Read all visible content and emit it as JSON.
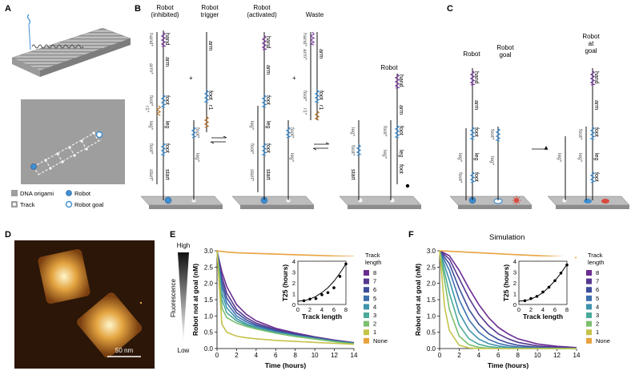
{
  "panels": {
    "A": "A",
    "B": "B",
    "C": "C",
    "D": "D",
    "E": "E",
    "F": "F"
  },
  "panelB": {
    "robot_inhibited": [
      "Robot",
      "(inhibited)"
    ],
    "robot_trigger": [
      "Robot",
      "trigger"
    ],
    "robot_activated": [
      "Robot",
      "(activated)"
    ],
    "waste": "Waste",
    "robot": "Robot"
  },
  "panelC": {
    "robot": "Robot",
    "robot_goal": [
      "Robot",
      "goal"
    ],
    "robot_at_goal": [
      "Robot",
      "at",
      "goal"
    ]
  },
  "strand_labels": {
    "hand": "hand",
    "arm": "arm",
    "foot": "foot",
    "leg": "leg",
    "start": "start",
    "r1": "r1",
    "hand_star": "hand*",
    "arm_star": "arm*",
    "foot_star": "foot*",
    "leg_star": "leg*",
    "start_star": "start*",
    "r1_star": "r1*"
  },
  "panelA_legend": [
    {
      "label": "DNA origami",
      "icon": "gray-square"
    },
    {
      "label": "Robot",
      "icon": "blue-star-circle"
    },
    {
      "label": "Track",
      "icon": "white-dot"
    },
    {
      "label": "Robot goal",
      "icon": "blue-ring"
    }
  ],
  "panelD": {
    "scalebar": "50 nm"
  },
  "fluorescence": {
    "high": "High",
    "low": "Low",
    "label": "Fluorescence"
  },
  "colors": {
    "blue_domain": "#3f8fd2",
    "purple_domain": "#7b3f9e",
    "brown_domain": "#b8732e",
    "surface": "#b9b9b9",
    "orange_none": "#e8a23d",
    "red_goal": "#d94a3c"
  },
  "chart_data": [
    {
      "type": "line",
      "panel": "E",
      "title": "",
      "xlabel": "Time (hours)",
      "ylabel": "Robot not at goal (nM)",
      "xlim": [
        0,
        14
      ],
      "ylim": [
        0,
        3
      ],
      "xticks": [
        "0",
        "2",
        "4",
        "6",
        "8",
        "10",
        "12",
        "14"
      ],
      "yticks": [
        "0.0",
        "0.5",
        "1.0",
        "1.5",
        "2.0",
        "2.5",
        "3.0"
      ],
      "legend_title": [
        "Track",
        "length"
      ],
      "series": [
        {
          "name": "8",
          "color": "#6a2c91",
          "values_at_x": {
            "x": [
              0,
              0.5,
              1,
              2,
              3,
              4,
              6,
              8,
              10,
              12,
              14
            ],
            "y": [
              3.0,
              2.35,
              1.9,
              1.35,
              1.05,
              0.85,
              0.62,
              0.48,
              0.36,
              0.26,
              0.18
            ]
          }
        },
        {
          "name": "7",
          "color": "#55378f",
          "values_at_x": {
            "x": [
              0,
              0.5,
              1,
              2,
              3,
              4,
              6,
              8,
              10,
              12,
              14
            ],
            "y": [
              3.0,
              2.2,
              1.7,
              1.2,
              0.95,
              0.78,
              0.58,
              0.45,
              0.34,
              0.25,
              0.17
            ]
          }
        },
        {
          "name": "6",
          "color": "#3d4c9a",
          "values_at_x": {
            "x": [
              0,
              0.5,
              1,
              2,
              3,
              4,
              6,
              8,
              10,
              12,
              14
            ],
            "y": [
              3.0,
              2.05,
              1.55,
              1.1,
              0.88,
              0.73,
              0.55,
              0.43,
              0.33,
              0.24,
              0.16
            ]
          }
        },
        {
          "name": "5",
          "color": "#3b6fae",
          "values_at_x": {
            "x": [
              0,
              0.5,
              1,
              2,
              3,
              4,
              6,
              8,
              10,
              12,
              14
            ],
            "y": [
              3.0,
              1.9,
              1.4,
              1.0,
              0.82,
              0.69,
              0.53,
              0.41,
              0.32,
              0.23,
              0.16
            ]
          }
        },
        {
          "name": "4",
          "color": "#3e93ac",
          "values_at_x": {
            "x": [
              0,
              0.5,
              1,
              2,
              3,
              4,
              6,
              8,
              10,
              12,
              14
            ],
            "y": [
              3.0,
              1.7,
              1.25,
              0.92,
              0.76,
              0.65,
              0.5,
              0.4,
              0.31,
              0.22,
              0.15
            ]
          }
        },
        {
          "name": "3",
          "color": "#4aa99a",
          "values_at_x": {
            "x": [
              0,
              0.5,
              1,
              2,
              3,
              4,
              6,
              8,
              10,
              12,
              14
            ],
            "y": [
              3.0,
              1.5,
              1.1,
              0.85,
              0.72,
              0.62,
              0.48,
              0.38,
              0.3,
              0.22,
              0.15
            ]
          }
        },
        {
          "name": "2",
          "color": "#7bbf6e",
          "values_at_x": {
            "x": [
              0,
              0.5,
              1,
              2,
              3,
              4,
              6,
              8,
              10,
              12,
              14
            ],
            "y": [
              3.0,
              1.25,
              0.95,
              0.78,
              0.68,
              0.6,
              0.47,
              0.37,
              0.29,
              0.21,
              0.14
            ]
          }
        },
        {
          "name": "1",
          "color": "#c4c34a",
          "values_at_x": {
            "x": [
              0,
              0.5,
              1,
              2,
              3,
              4,
              6,
              8,
              10,
              12,
              14
            ],
            "y": [
              3.0,
              0.75,
              0.5,
              0.38,
              0.33,
              0.3,
              0.25,
              0.22,
              0.19,
              0.16,
              0.13
            ]
          }
        },
        {
          "name": "None",
          "color": "#e8a23d",
          "values_at_x": {
            "x": [
              0,
              0.5,
              1,
              2,
              4,
              6,
              8,
              10,
              12,
              14
            ],
            "y": [
              3.0,
              2.98,
              2.96,
              2.94,
              2.92,
              2.9,
              2.88,
              2.86,
              2.84,
              2.82
            ]
          }
        }
      ],
      "inset": {
        "xlabel": "Track length",
        "ylabel": "T25 (hours)",
        "xlim": [
          0,
          8
        ],
        "ylim": [
          0,
          4
        ],
        "xticks": [
          "0",
          "2",
          "4",
          "6",
          "8"
        ],
        "yticks": [
          "0",
          "1",
          "2",
          "3",
          "4"
        ],
        "points": {
          "x": [
            1,
            2,
            3,
            4,
            5,
            6,
            7,
            8
          ],
          "y": [
            0.35,
            0.5,
            0.55,
            0.9,
            1.1,
            1.55,
            2.6,
            3.75
          ]
        },
        "fit": {
          "x": [
            0,
            1,
            2,
            3,
            4,
            5,
            6,
            7,
            8
          ],
          "y": [
            0.3,
            0.35,
            0.5,
            0.75,
            1.1,
            1.55,
            2.15,
            2.9,
            3.75
          ]
        }
      }
    },
    {
      "type": "line",
      "panel": "F",
      "title": "Simulation",
      "xlabel": "Time (hours)",
      "ylabel": "Robot not at goal (nM)",
      "xlim": [
        0,
        14
      ],
      "ylim": [
        0,
        3
      ],
      "xticks": [
        "0",
        "2",
        "4",
        "6",
        "8",
        "10",
        "12",
        "14"
      ],
      "yticks": [
        "0.0",
        "0.5",
        "1.0",
        "1.5",
        "2.0",
        "2.5",
        "3.0"
      ],
      "legend_title": [
        "Track",
        "length"
      ],
      "series": [
        {
          "name": "8",
          "color": "#6a2c91",
          "values_at_x": {
            "x": [
              0,
              1,
              2,
              3,
              4,
              5,
              6,
              7,
              8,
              10,
              12,
              14
            ],
            "y": [
              3.0,
              2.85,
              2.4,
              1.85,
              1.35,
              0.95,
              0.65,
              0.45,
              0.3,
              0.14,
              0.07,
              0.03
            ]
          }
        },
        {
          "name": "7",
          "color": "#55378f",
          "values_at_x": {
            "x": [
              0,
              1,
              2,
              3,
              4,
              5,
              6,
              7,
              8,
              10,
              12,
              14
            ],
            "y": [
              3.0,
              2.75,
              2.15,
              1.55,
              1.05,
              0.7,
              0.45,
              0.3,
              0.19,
              0.08,
              0.04,
              0.02
            ]
          }
        },
        {
          "name": "6",
          "color": "#3d4c9a",
          "values_at_x": {
            "x": [
              0,
              1,
              2,
              3,
              4,
              5,
              6,
              7,
              8,
              10,
              12,
              14
            ],
            "y": [
              3.0,
              2.6,
              1.85,
              1.2,
              0.75,
              0.46,
              0.28,
              0.17,
              0.1,
              0.04,
              0.02,
              0.01
            ]
          }
        },
        {
          "name": "5",
          "color": "#3b6fae",
          "values_at_x": {
            "x": [
              0,
              1,
              2,
              3,
              4,
              5,
              6,
              7,
              8,
              10,
              12,
              14
            ],
            "y": [
              3.0,
              2.4,
              1.5,
              0.88,
              0.5,
              0.28,
              0.16,
              0.09,
              0.05,
              0.02,
              0.01,
              0.0
            ]
          }
        },
        {
          "name": "4",
          "color": "#3e93ac",
          "values_at_x": {
            "x": [
              0,
              1,
              2,
              3,
              4,
              5,
              6,
              7,
              8,
              10,
              12,
              14
            ],
            "y": [
              3.0,
              2.1,
              1.1,
              0.57,
              0.29,
              0.15,
              0.08,
              0.04,
              0.02,
              0.01,
              0.0,
              0.0
            ]
          }
        },
        {
          "name": "3",
          "color": "#4aa99a",
          "values_at_x": {
            "x": [
              0,
              1,
              2,
              3,
              4,
              5,
              6,
              7,
              8,
              10,
              12,
              14
            ],
            "y": [
              3.0,
              1.7,
              0.72,
              0.3,
              0.13,
              0.06,
              0.03,
              0.01,
              0.0,
              0.0,
              0.0,
              0.0
            ]
          }
        },
        {
          "name": "2",
          "color": "#7bbf6e",
          "values_at_x": {
            "x": [
              0,
              1,
              2,
              3,
              4,
              5,
              6,
              7,
              8,
              10,
              12,
              14
            ],
            "y": [
              3.0,
              1.2,
              0.38,
              0.12,
              0.04,
              0.01,
              0.0,
              0.0,
              0.0,
              0.0,
              0.0,
              0.0
            ]
          }
        },
        {
          "name": "1",
          "color": "#c4c34a",
          "values_at_x": {
            "x": [
              0,
              0.5,
              1,
              2,
              3,
              4,
              6,
              8,
              10,
              12,
              14
            ],
            "y": [
              3.0,
              1.3,
              0.55,
              0.1,
              0.02,
              0.0,
              0.0,
              0.0,
              0.0,
              0.0,
              0.0
            ]
          }
        },
        {
          "name": "None",
          "color": "#e8a23d",
          "values_at_x": {
            "x": [
              0,
              2,
              4,
              6,
              8,
              10,
              12,
              14
            ],
            "y": [
              3.0,
              2.97,
              2.94,
              2.91,
              2.88,
              2.85,
              2.82,
              2.79
            ]
          }
        }
      ],
      "inset": {
        "xlabel": "Track length",
        "ylabel": "T25 (hours)",
        "xlim": [
          0,
          8
        ],
        "ylim": [
          0,
          4
        ],
        "xticks": [
          "0",
          "2",
          "4",
          "6",
          "8"
        ],
        "yticks": [
          "0",
          "1",
          "2",
          "3",
          "4"
        ],
        "points": {
          "x": [
            1,
            2,
            3,
            4,
            5,
            6,
            7,
            8
          ],
          "y": [
            0.35,
            0.55,
            0.75,
            1.15,
            1.6,
            2.2,
            2.9,
            3.65
          ]
        },
        "fit": {
          "x": [
            0,
            1,
            2,
            3,
            4,
            5,
            6,
            7,
            8
          ],
          "y": [
            0.3,
            0.35,
            0.5,
            0.75,
            1.1,
            1.6,
            2.2,
            2.9,
            3.7
          ]
        }
      }
    }
  ]
}
